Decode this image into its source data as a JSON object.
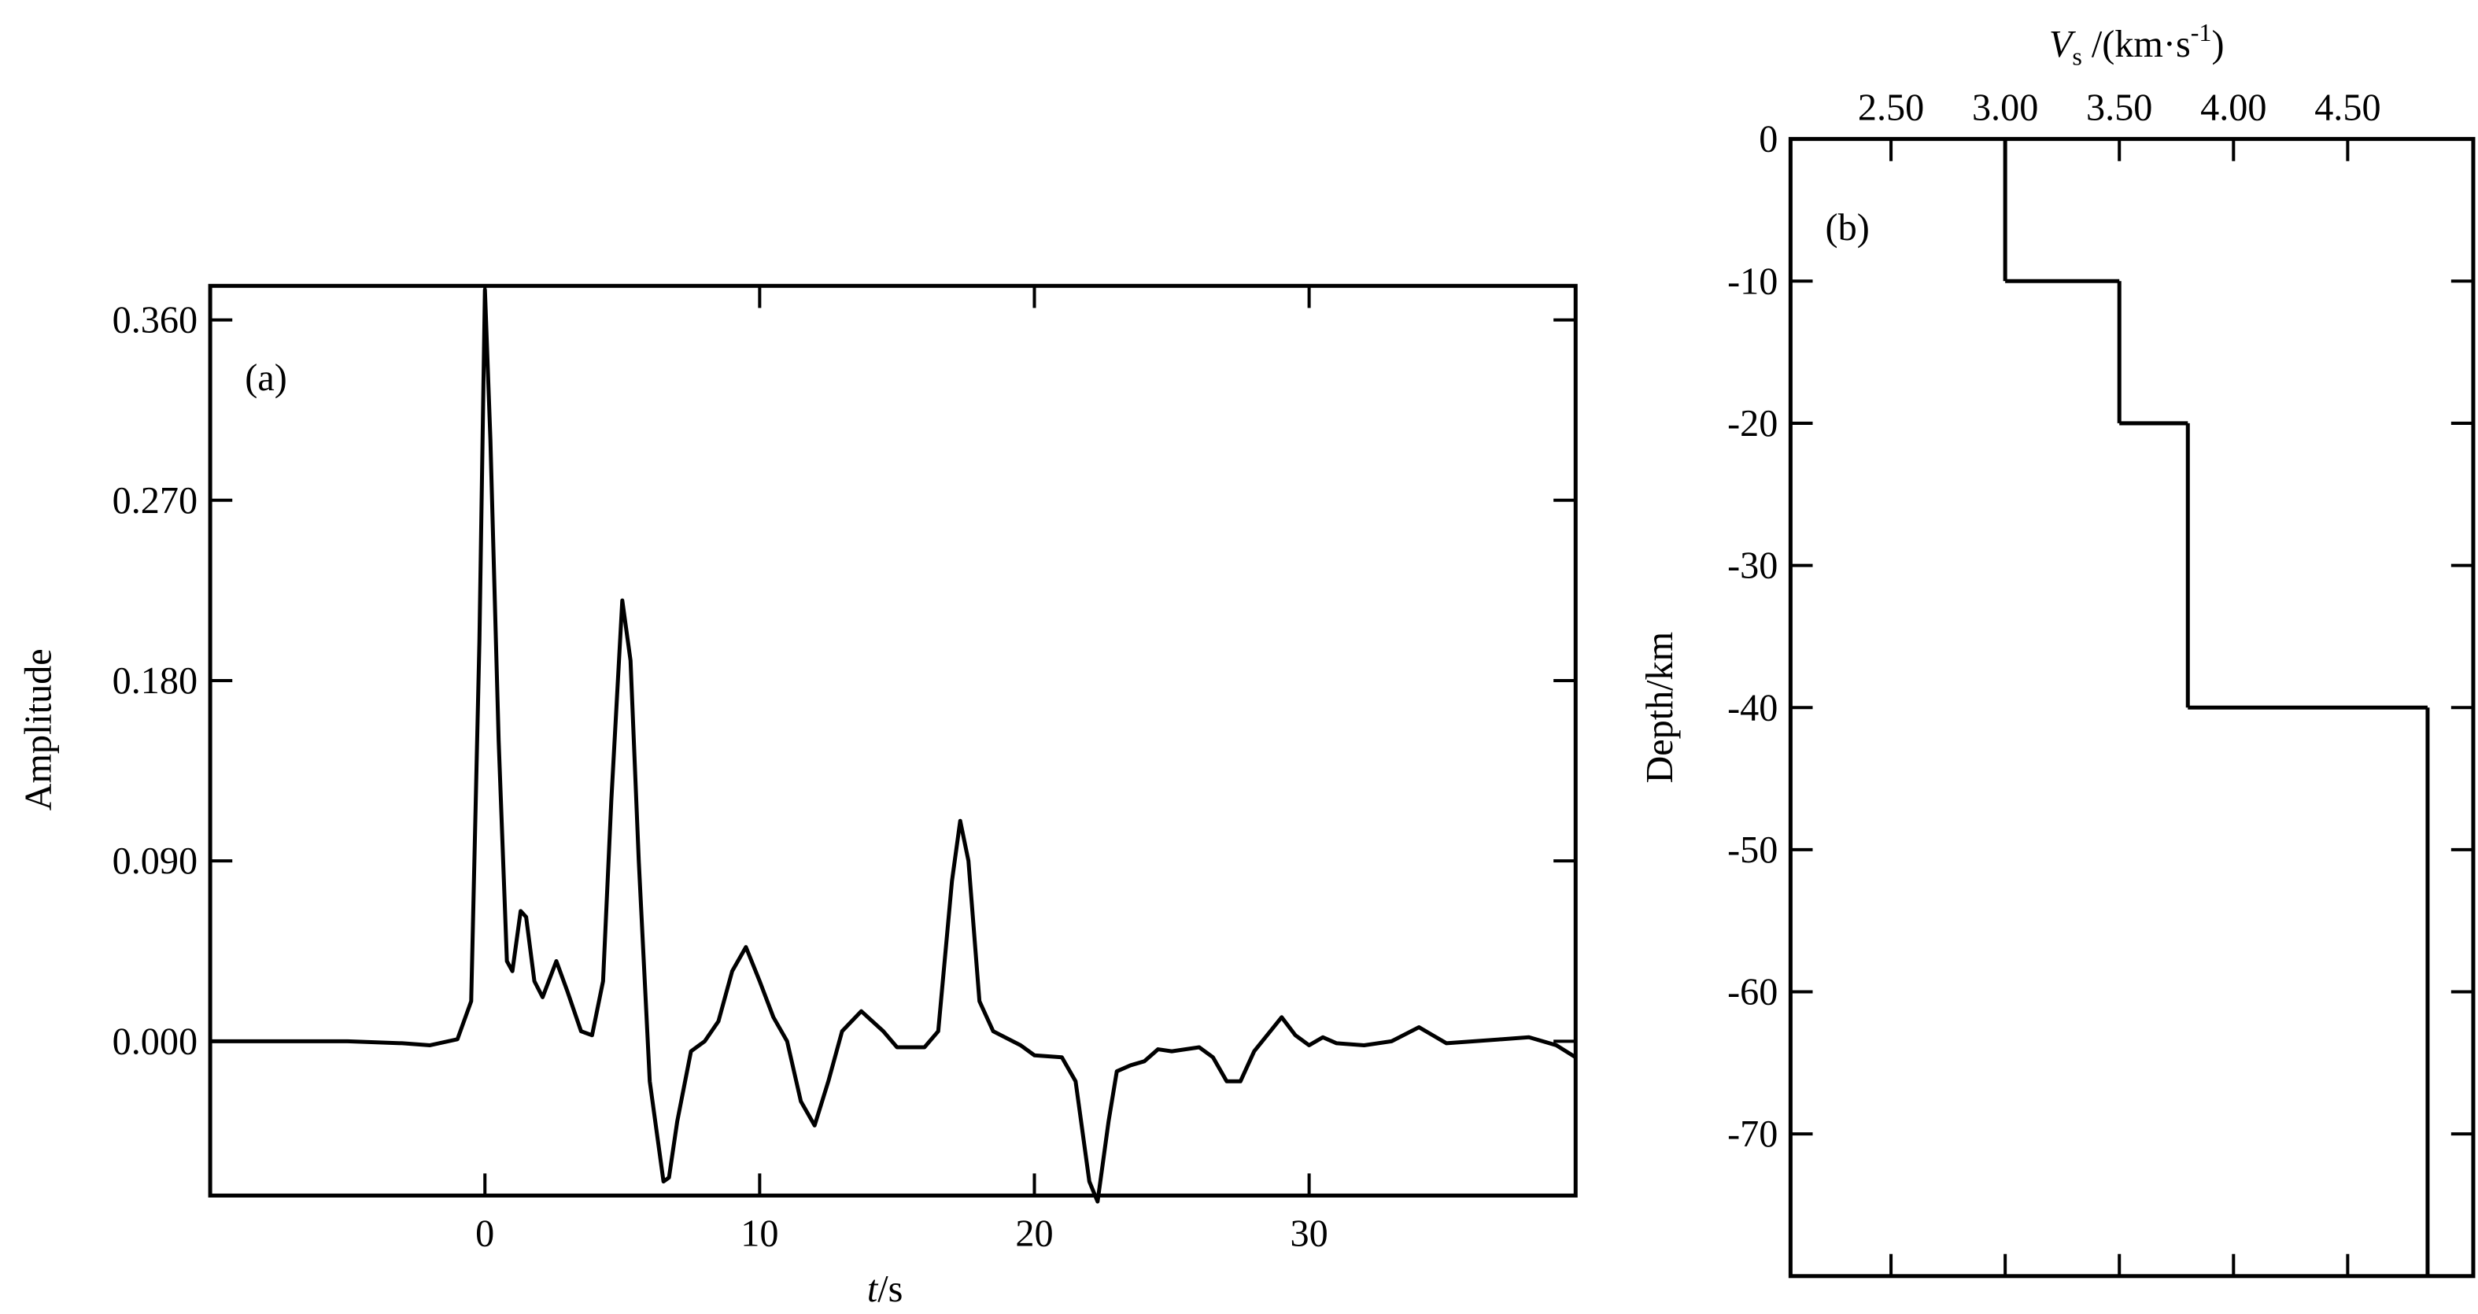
{
  "chart_data": [
    {
      "type": "line",
      "annotation": "(a)",
      "ylabel": "Amplitude",
      "xlabel": {
        "symbol": "t",
        "unit": "/s"
      },
      "color": "#000000",
      "x": [
        -10,
        -5,
        -3,
        -2,
        -1,
        -0.5,
        -0.2,
        0,
        0.2,
        0.5,
        0.8,
        1.0,
        1.3,
        1.5,
        1.8,
        2.1,
        2.6,
        3.0,
        3.5,
        3.9,
        4.3,
        4.6,
        5.0,
        5.3,
        5.6,
        6.0,
        6.5,
        6.7,
        7.0,
        7.5,
        8.0,
        8.5,
        9.0,
        9.5,
        10.0,
        10.5,
        11.0,
        11.5,
        12.0,
        12.5,
        13.0,
        13.7,
        14.5,
        15.0,
        16.0,
        16.5,
        17.0,
        17.3,
        17.6,
        18.0,
        18.5,
        19.5,
        20.0,
        21.0,
        21.5,
        22.0,
        22.3,
        22.7,
        23.0,
        23.5,
        24.0,
        24.5,
        25.0,
        26.0,
        26.5,
        27.0,
        27.5,
        28.0,
        29.0,
        29.5,
        30.0,
        30.5,
        31.0,
        32.0,
        33.0,
        34.0,
        34.5,
        35.0,
        36.0,
        37.0,
        38.0,
        39.0,
        39.7
      ],
      "values": [
        0.0,
        0.0,
        -0.001,
        -0.002,
        0.001,
        0.02,
        0.2,
        0.375,
        0.3,
        0.15,
        0.04,
        0.035,
        0.065,
        0.062,
        0.03,
        0.022,
        0.04,
        0.025,
        0.005,
        0.003,
        0.03,
        0.12,
        0.22,
        0.19,
        0.09,
        -0.02,
        -0.07,
        -0.068,
        -0.04,
        -0.005,
        0.0,
        0.01,
        0.035,
        0.047,
        0.03,
        0.012,
        0.0,
        -0.03,
        -0.042,
        -0.02,
        0.005,
        0.015,
        0.005,
        -0.003,
        -0.003,
        0.005,
        0.08,
        0.11,
        0.09,
        0.02,
        0.005,
        -0.002,
        -0.007,
        -0.008,
        -0.02,
        -0.07,
        -0.08,
        -0.04,
        -0.015,
        -0.012,
        -0.01,
        -0.004,
        -0.005,
        -0.003,
        -0.008,
        -0.02,
        -0.02,
        -0.005,
        0.012,
        0.003,
        -0.002,
        0.002,
        -0.001,
        -0.002,
        0.0,
        0.007,
        0.003,
        -0.001,
        0.0,
        0.001,
        0.002,
        -0.002,
        -0.008
      ],
      "xlim": [
        -10,
        39.7
      ],
      "xticks": [
        0,
        10,
        20,
        30
      ],
      "ylim": [
        -0.077,
        0.377
      ],
      "yticks": [
        {
          "value": 0,
          "label": "0.000"
        },
        {
          "value": 0.09,
          "label": "0.090"
        },
        {
          "value": 0.18,
          "label": "0.180"
        },
        {
          "value": 0.27,
          "label": "0.270"
        },
        {
          "value": 0.36,
          "label": "0.360"
        }
      ]
    },
    {
      "type": "step",
      "annotation": "(b)",
      "ylabel": "Depth/km",
      "xlabel": {
        "symbol": "V",
        "subscript": "s",
        "unit": " /(km·s",
        "superscript": "-1",
        "close": ")"
      },
      "color": "#000000",
      "values": [
        3.0,
        3.5,
        3.8,
        4.85
      ],
      "layer_tops": [
        0,
        -10,
        -20,
        -40
      ],
      "layer_bottoms": [
        -10,
        -20,
        -40,
        -80
      ],
      "xlim": [
        2.06,
        5.05
      ],
      "xticks": [
        {
          "value": 2.5,
          "label": "2.50"
        },
        {
          "value": 3.0,
          "label": "3.00"
        },
        {
          "value": 3.5,
          "label": "3.50"
        },
        {
          "value": 4.0,
          "label": "4.00"
        },
        {
          "value": 4.5,
          "label": "4.50"
        }
      ],
      "ylim": [
        -80,
        0
      ],
      "yticks": [
        0,
        -10,
        -20,
        -30,
        -40,
        -50,
        -60,
        -70
      ]
    }
  ]
}
